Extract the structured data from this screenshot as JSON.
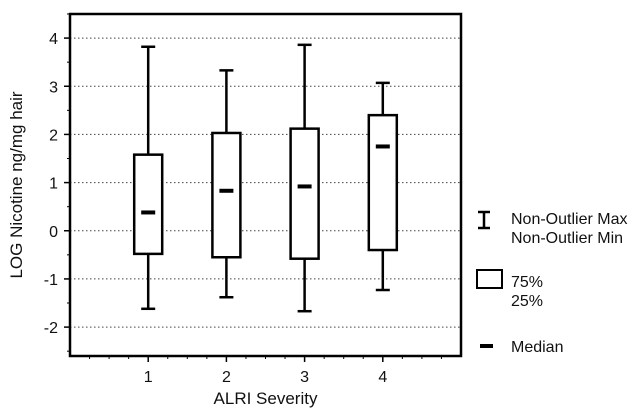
{
  "chart_data": {
    "type": "boxplot",
    "title": "",
    "xlabel": "ALRI Severity",
    "ylabel": "LOG Nicotine ng/mg hair",
    "ylim": [
      -2.6,
      4.5
    ],
    "xlim": [
      0,
      5
    ],
    "yticks": [
      -2,
      -1,
      0,
      1,
      2,
      3,
      4
    ],
    "grid": "horizontal-dotted",
    "legend_position": "right",
    "categories": [
      "1",
      "2",
      "3",
      "4"
    ],
    "series": [
      {
        "boxes": [
          {
            "category": "1",
            "min": -1.62,
            "q1": -0.48,
            "median": 0.38,
            "q3": 1.58,
            "max": 3.82
          },
          {
            "category": "2",
            "min": -1.38,
            "q1": -0.55,
            "median": 0.83,
            "q3": 2.03,
            "max": 3.33
          },
          {
            "category": "3",
            "min": -1.67,
            "q1": -0.58,
            "median": 0.92,
            "q3": 2.12,
            "max": 3.86
          },
          {
            "category": "4",
            "min": -1.23,
            "q1": -0.4,
            "median": 1.75,
            "q3": 2.4,
            "max": 3.07
          }
        ]
      }
    ],
    "legend": {
      "whisker": [
        "Non-Outlier Max",
        "Non-Outlier Min"
      ],
      "box": [
        "75%",
        "25%"
      ],
      "median": "Median"
    }
  }
}
